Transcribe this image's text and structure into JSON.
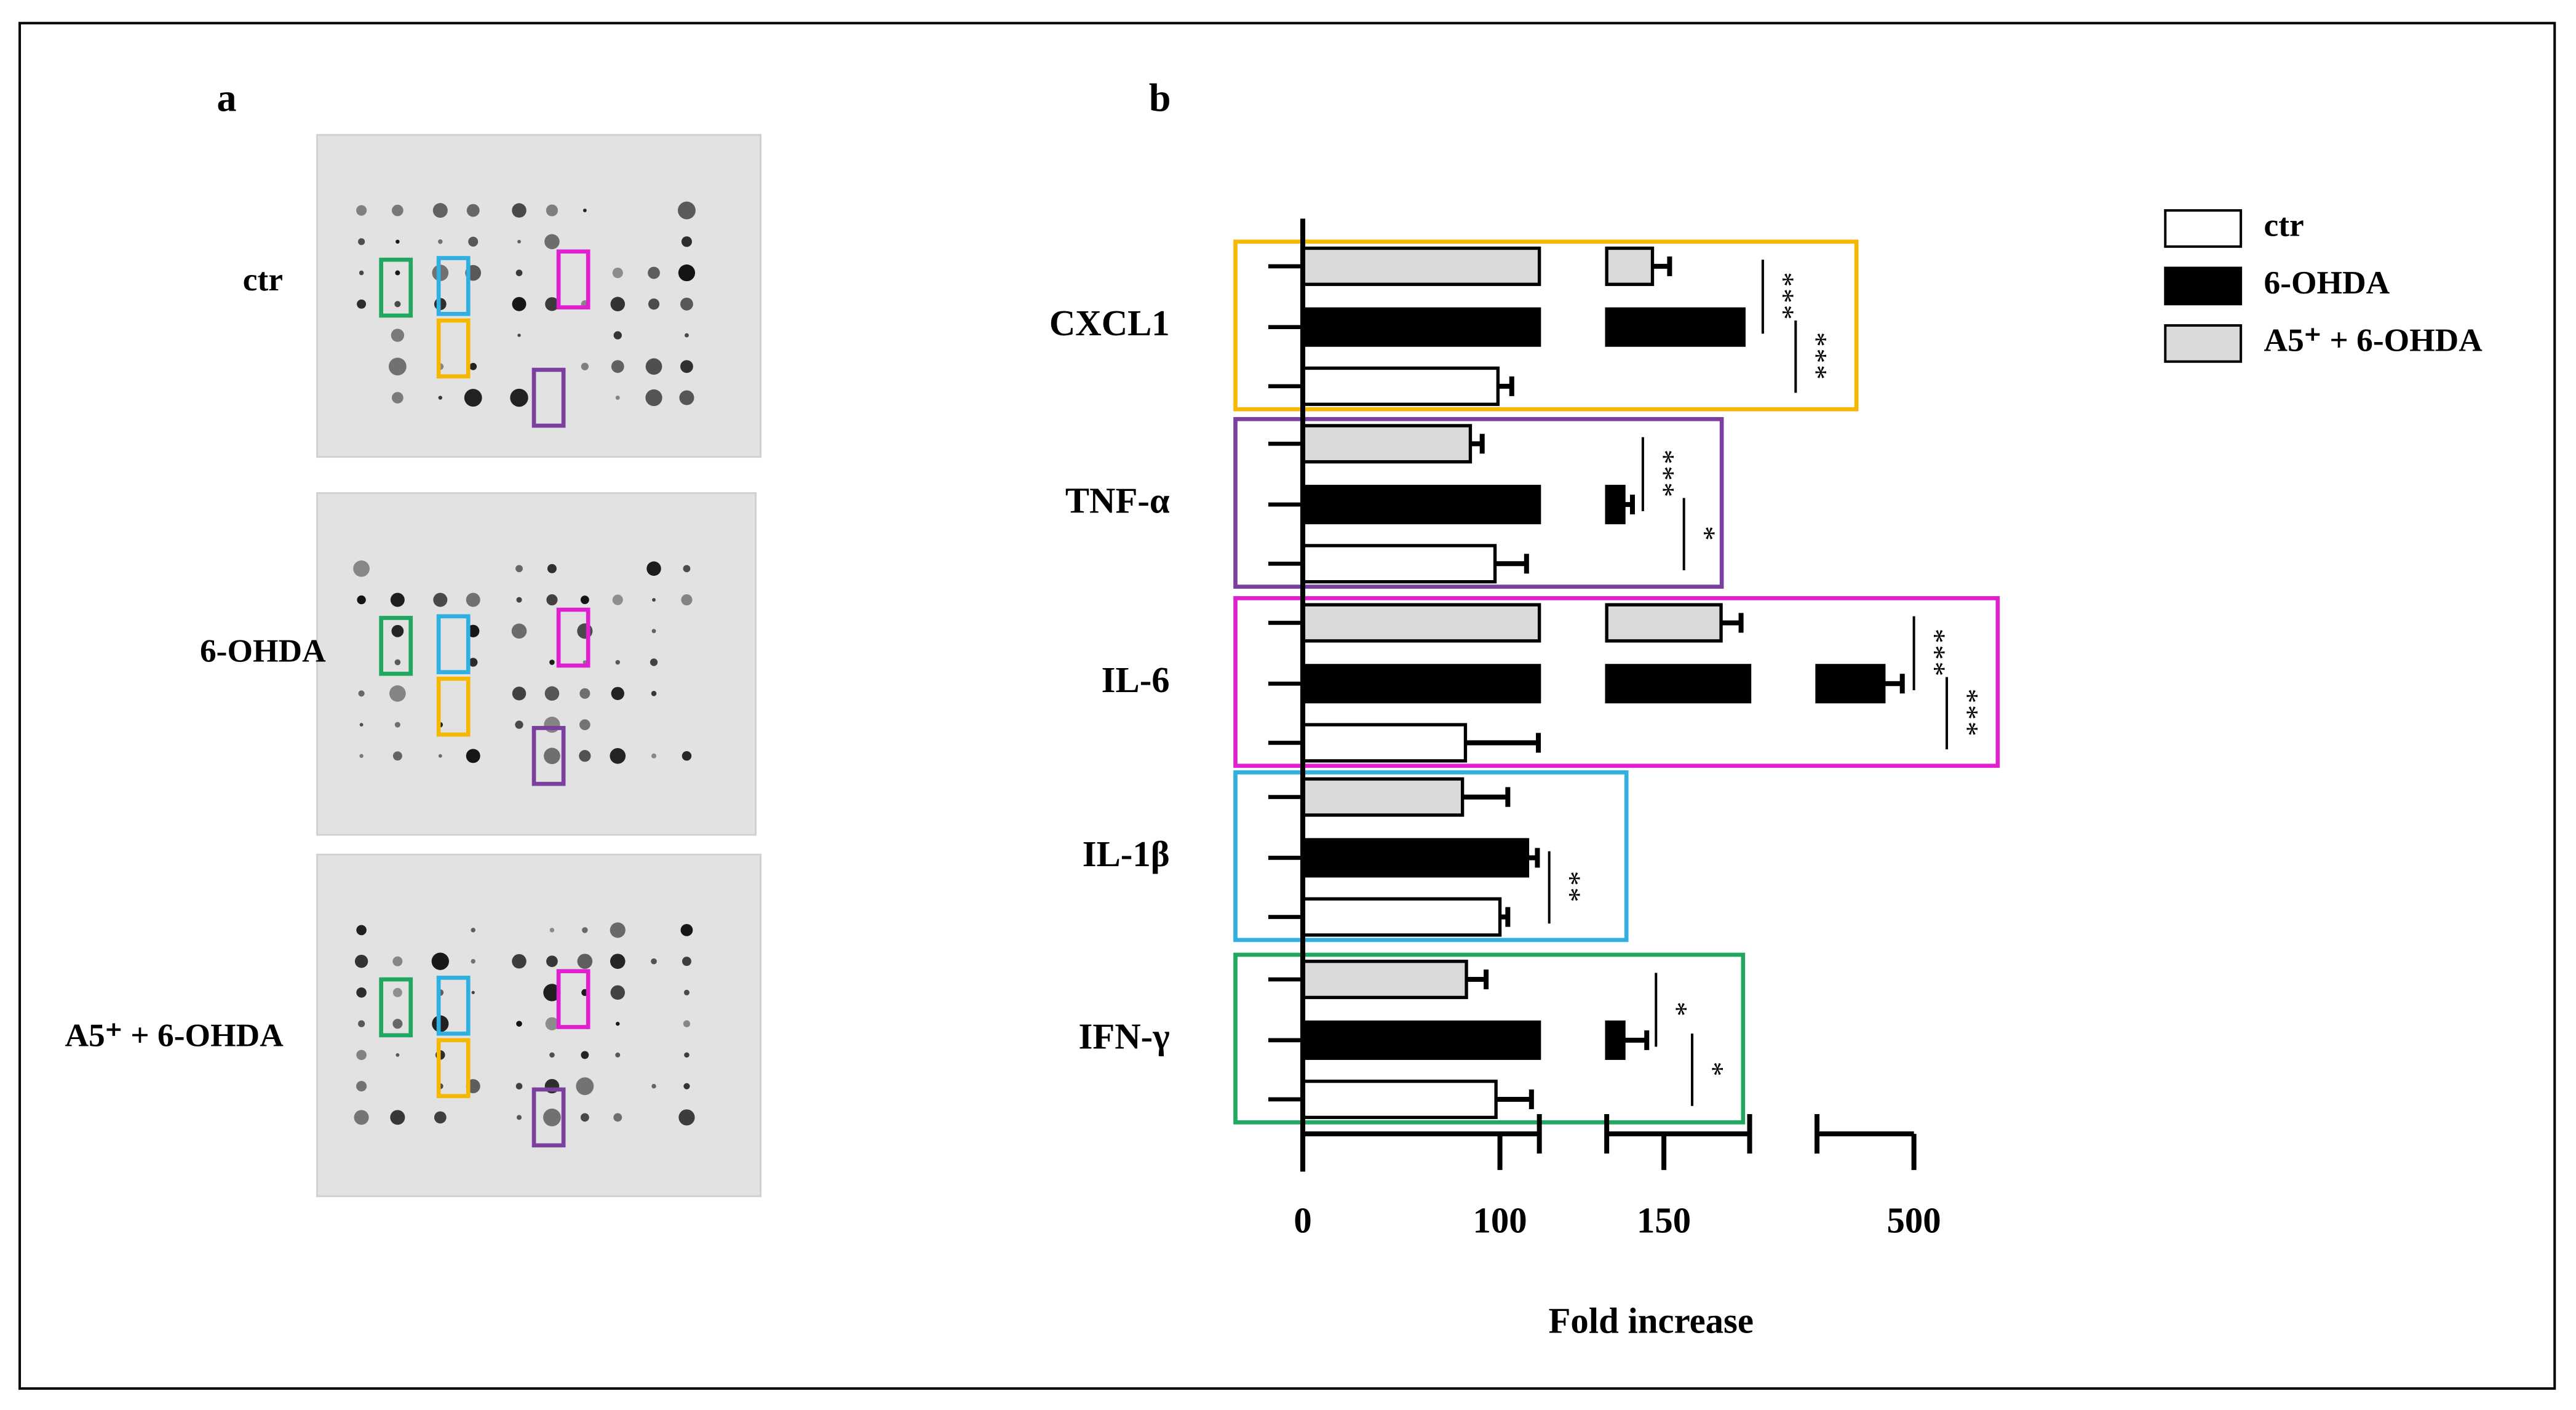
{
  "panels": {
    "a": "a",
    "b": "b"
  },
  "blot_labels": [
    "ctr",
    "6-OHDA",
    "A5⁺ + 6-OHDA"
  ],
  "chart_data": {
    "type": "bar",
    "orientation": "horizontal",
    "categories": [
      "CXCL1",
      "TNF-α",
      "IL-6",
      "IL-1β",
      "IFN-γ"
    ],
    "highlight_colors": [
      "#f5b800",
      "#7b3fa0",
      "#e020d0",
      "#30b0e0",
      "#20a860"
    ],
    "series": [
      {
        "name": "ctr",
        "color": "#ffffff",
        "values": [
          99,
          97.5,
          82.5,
          100,
          98
        ],
        "errors": [
          7,
          16,
          37,
          4,
          18
        ]
      },
      {
        "name": "6-OHDA",
        "color": "#000000",
        "values": [
          164,
          143,
          469,
          114,
          143
        ],
        "errors": [
          0,
          1.5,
          19,
          5,
          4
        ]
      },
      {
        "name": "A5⁺ + 6-OHDA",
        "color": "#d9d9d9",
        "values": [
          148,
          85,
          160,
          81,
          83
        ],
        "errors": [
          3,
          6,
          3.5,
          23,
          10
        ]
      }
    ],
    "axis_segments": [
      [
        0,
        120
      ],
      [
        140,
        165
      ],
      [
        400,
        500
      ]
    ],
    "xticks": [
      0,
      100,
      150,
      500
    ],
    "xlabel": "Fold increase",
    "legend": "top-right",
    "annotations": [
      {
        "category": 0,
        "between": [
          2,
          1
        ],
        "text": "***"
      },
      {
        "category": 0,
        "between": [
          1,
          0
        ],
        "text": "***"
      },
      {
        "category": 1,
        "between": [
          2,
          1
        ],
        "text": "***"
      },
      {
        "category": 1,
        "between": [
          1,
          0
        ],
        "text": "*"
      },
      {
        "category": 2,
        "between": [
          2,
          1
        ],
        "text": "***"
      },
      {
        "category": 2,
        "between": [
          1,
          0
        ],
        "text": "***"
      },
      {
        "category": 3,
        "between": [
          1,
          0
        ],
        "text": "**"
      },
      {
        "category": 4,
        "between": [
          2,
          1
        ],
        "text": "*"
      },
      {
        "category": 4,
        "between": [
          1,
          0
        ],
        "text": "*"
      }
    ]
  }
}
